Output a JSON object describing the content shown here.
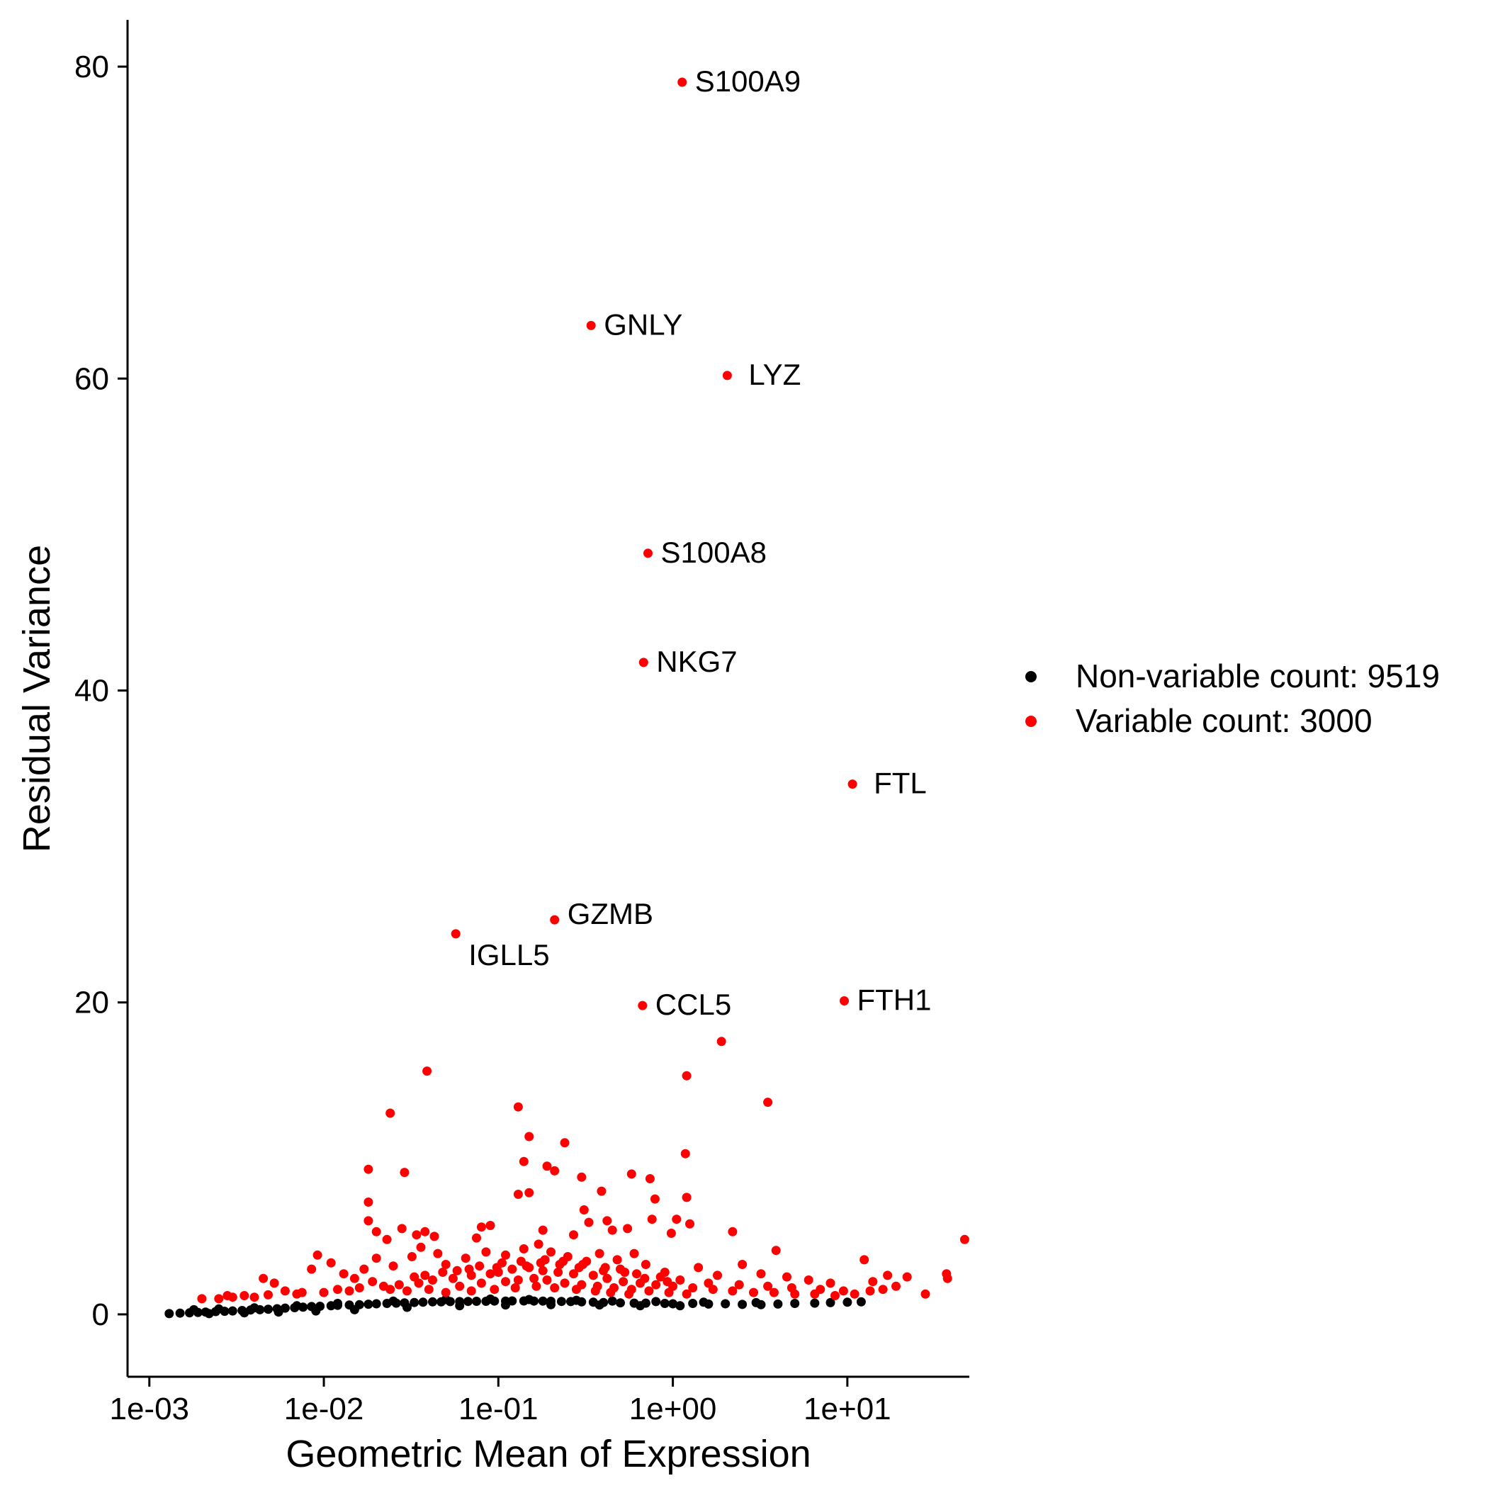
{
  "chart_data": {
    "type": "scatter",
    "title": "",
    "xlabel": "Geometric Mean of Expression",
    "ylabel": "Residual Variance",
    "x_scale": "log10",
    "xlim": [
      0.00075,
      50
    ],
    "ylim": [
      -4,
      83
    ],
    "x_ticks": [
      {
        "value": 0.001,
        "label": "1e-03"
      },
      {
        "value": 0.01,
        "label": "1e-02"
      },
      {
        "value": 0.1,
        "label": "1e-01"
      },
      {
        "value": 1,
        "label": "1e+00"
      },
      {
        "value": 10,
        "label": "1e+01"
      }
    ],
    "y_ticks": [
      {
        "value": 0,
        "label": "0"
      },
      {
        "value": 20,
        "label": "20"
      },
      {
        "value": 40,
        "label": "40"
      },
      {
        "value": 60,
        "label": "60"
      },
      {
        "value": 80,
        "label": "80"
      }
    ],
    "grid": false,
    "legend_position": "right",
    "series": [
      {
        "name": "Non-variable count: 9519",
        "color": "#000000",
        "points": [
          [
            0.0013,
            0.05
          ],
          [
            0.0015,
            0.08
          ],
          [
            0.0017,
            0.1
          ],
          [
            0.0019,
            0.12
          ],
          [
            0.0021,
            0.15
          ],
          [
            0.0024,
            0.18
          ],
          [
            0.0027,
            0.2
          ],
          [
            0.003,
            0.22
          ],
          [
            0.0034,
            0.25
          ],
          [
            0.0038,
            0.28
          ],
          [
            0.0043,
            0.3
          ],
          [
            0.0048,
            0.33
          ],
          [
            0.0054,
            0.36
          ],
          [
            0.006,
            0.4
          ],
          [
            0.0068,
            0.43
          ],
          [
            0.0076,
            0.46
          ],
          [
            0.0085,
            0.5
          ],
          [
            0.0095,
            0.52
          ],
          [
            0.011,
            0.55
          ],
          [
            0.012,
            0.58
          ],
          [
            0.014,
            0.6
          ],
          [
            0.016,
            0.62
          ],
          [
            0.018,
            0.65
          ],
          [
            0.02,
            0.68
          ],
          [
            0.023,
            0.7
          ],
          [
            0.026,
            0.72
          ],
          [
            0.029,
            0.74
          ],
          [
            0.033,
            0.76
          ],
          [
            0.037,
            0.78
          ],
          [
            0.042,
            0.8
          ],
          [
            0.047,
            0.8
          ],
          [
            0.053,
            0.82
          ],
          [
            0.06,
            0.82
          ],
          [
            0.067,
            0.83
          ],
          [
            0.075,
            0.84
          ],
          [
            0.085,
            0.84
          ],
          [
            0.095,
            0.85
          ],
          [
            0.11,
            0.85
          ],
          [
            0.12,
            0.86
          ],
          [
            0.14,
            0.86
          ],
          [
            0.16,
            0.85
          ],
          [
            0.18,
            0.85
          ],
          [
            0.2,
            0.84
          ],
          [
            0.23,
            0.83
          ],
          [
            0.26,
            0.82
          ],
          [
            0.3,
            0.8
          ],
          [
            0.35,
            0.78
          ],
          [
            0.4,
            0.76
          ],
          [
            0.5,
            0.74
          ],
          [
            0.6,
            0.72
          ],
          [
            0.7,
            0.72
          ],
          [
            0.9,
            0.7
          ],
          [
            1.0,
            0.68
          ],
          [
            1.3,
            0.7
          ],
          [
            1.6,
            0.66
          ],
          [
            2.0,
            0.68
          ],
          [
            2.5,
            0.64
          ],
          [
            3.2,
            0.62
          ],
          [
            4.0,
            0.66
          ],
          [
            5.0,
            0.7
          ],
          [
            6.5,
            0.72
          ],
          [
            8.0,
            0.75
          ],
          [
            10.0,
            0.78
          ],
          [
            12.0,
            0.8
          ],
          [
            0.0018,
            0.3
          ],
          [
            0.0025,
            0.35
          ],
          [
            0.004,
            0.42
          ],
          [
            0.007,
            0.55
          ],
          [
            0.012,
            0.7
          ],
          [
            0.025,
            0.85
          ],
          [
            0.05,
            0.95
          ],
          [
            0.09,
            0.98
          ],
          [
            0.15,
            0.95
          ],
          [
            0.28,
            0.9
          ],
          [
            0.45,
            0.85
          ],
          [
            0.8,
            0.82
          ],
          [
            1.5,
            0.78
          ],
          [
            3.0,
            0.75
          ],
          [
            0.0022,
            0.05
          ],
          [
            0.0035,
            0.1
          ],
          [
            0.0055,
            0.15
          ],
          [
            0.009,
            0.22
          ],
          [
            0.015,
            0.3
          ],
          [
            0.03,
            0.45
          ],
          [
            0.06,
            0.55
          ],
          [
            0.11,
            0.6
          ],
          [
            0.2,
            0.62
          ],
          [
            0.38,
            0.6
          ],
          [
            0.65,
            0.55
          ],
          [
            1.1,
            0.55
          ]
        ]
      },
      {
        "name": "Variable count: 3000",
        "color": "#ff0000",
        "points": [
          [
            1.13,
            79.0
          ],
          [
            0.34,
            63.4
          ],
          [
            2.05,
            60.2
          ],
          [
            0.72,
            48.8
          ],
          [
            0.68,
            41.8
          ],
          [
            10.7,
            34.0
          ],
          [
            0.21,
            25.3
          ],
          [
            0.057,
            24.4
          ],
          [
            0.67,
            19.8
          ],
          [
            9.6,
            20.1
          ],
          [
            1.9,
            17.5
          ],
          [
            0.039,
            15.6
          ],
          [
            1.2,
            15.3
          ],
          [
            3.5,
            13.6
          ],
          [
            0.13,
            13.3
          ],
          [
            0.024,
            12.9
          ],
          [
            0.15,
            11.4
          ],
          [
            0.24,
            11.0
          ],
          [
            1.18,
            10.3
          ],
          [
            0.018,
            9.3
          ],
          [
            0.029,
            9.1
          ],
          [
            0.14,
            9.8
          ],
          [
            0.19,
            9.5
          ],
          [
            0.21,
            9.2
          ],
          [
            0.3,
            8.8
          ],
          [
            0.58,
            9.0
          ],
          [
            0.74,
            8.7
          ],
          [
            0.13,
            7.7
          ],
          [
            0.15,
            7.8
          ],
          [
            0.39,
            7.9
          ],
          [
            0.018,
            7.2
          ],
          [
            0.79,
            7.4
          ],
          [
            1.2,
            7.5
          ],
          [
            0.31,
            6.7
          ],
          [
            0.018,
            6.0
          ],
          [
            0.08,
            5.6
          ],
          [
            0.09,
            5.7
          ],
          [
            0.33,
            5.9
          ],
          [
            0.42,
            6.0
          ],
          [
            0.76,
            6.1
          ],
          [
            1.05,
            6.1
          ],
          [
            1.25,
            5.8
          ],
          [
            2.2,
            5.3
          ],
          [
            0.028,
            5.5
          ],
          [
            0.034,
            5.1
          ],
          [
            0.038,
            5.3
          ],
          [
            0.043,
            5.0
          ],
          [
            0.02,
            5.3
          ],
          [
            0.023,
            4.8
          ],
          [
            0.075,
            4.9
          ],
          [
            0.18,
            5.4
          ],
          [
            0.27,
            5.1
          ],
          [
            0.45,
            5.4
          ],
          [
            0.55,
            5.5
          ],
          [
            0.98,
            5.2
          ],
          [
            47.0,
            4.8
          ],
          [
            3.9,
            4.1
          ],
          [
            12.5,
            3.5
          ],
          [
            0.0045,
            2.3
          ],
          [
            0.0052,
            2.0
          ],
          [
            0.0035,
            1.2
          ],
          [
            0.006,
            1.5
          ],
          [
            0.0085,
            2.9
          ],
          [
            0.0092,
            3.8
          ],
          [
            0.011,
            3.3
          ],
          [
            0.013,
            2.6
          ],
          [
            0.015,
            2.3
          ],
          [
            0.017,
            2.9
          ],
          [
            0.02,
            3.6
          ],
          [
            0.025,
            3.1
          ],
          [
            0.032,
            3.7
          ],
          [
            0.036,
            4.3
          ],
          [
            0.045,
            3.9
          ],
          [
            0.05,
            3.2
          ],
          [
            0.065,
            3.6
          ],
          [
            0.085,
            4.0
          ],
          [
            0.11,
            3.8
          ],
          [
            0.14,
            4.2
          ],
          [
            0.17,
            4.5
          ],
          [
            0.2,
            4.0
          ],
          [
            0.25,
            3.7
          ],
          [
            0.32,
            3.4
          ],
          [
            0.38,
            3.9
          ],
          [
            0.48,
            3.5
          ],
          [
            0.6,
            3.9
          ],
          [
            0.7,
            3.2
          ],
          [
            0.9,
            2.7
          ],
          [
            1.4,
            3.0
          ],
          [
            1.8,
            2.5
          ],
          [
            2.5,
            3.2
          ],
          [
            3.2,
            2.6
          ],
          [
            4.5,
            2.4
          ],
          [
            6.0,
            2.2
          ],
          [
            8.0,
            2.0
          ],
          [
            14.0,
            2.1
          ],
          [
            17.0,
            2.5
          ],
          [
            19.0,
            1.8
          ],
          [
            22.0,
            2.4
          ],
          [
            28.0,
            1.3
          ],
          [
            37.0,
            2.6
          ],
          [
            37.5,
            2.3
          ],
          [
            0.002,
            1.0
          ],
          [
            0.0025,
            1.0
          ],
          [
            0.003,
            1.1
          ],
          [
            0.004,
            1.1
          ],
          [
            0.007,
            1.3
          ],
          [
            0.01,
            1.4
          ],
          [
            0.012,
            1.6
          ],
          [
            0.016,
            1.7
          ],
          [
            0.022,
            1.8
          ],
          [
            0.027,
            1.9
          ],
          [
            0.035,
            2.0
          ],
          [
            0.042,
            2.2
          ],
          [
            0.055,
            2.3
          ],
          [
            0.07,
            2.5
          ],
          [
            0.09,
            2.6
          ],
          [
            0.1,
            2.7
          ],
          [
            0.12,
            2.9
          ],
          [
            0.15,
            3.0
          ],
          [
            0.18,
            2.8
          ],
          [
            0.22,
            2.7
          ],
          [
            0.27,
            2.6
          ],
          [
            0.35,
            2.5
          ],
          [
            0.42,
            2.3
          ],
          [
            0.52,
            2.1
          ],
          [
            0.65,
            2.0
          ],
          [
            0.8,
            1.9
          ],
          [
            1.0,
            1.8
          ],
          [
            1.3,
            1.7
          ],
          [
            1.7,
            1.6
          ],
          [
            2.2,
            1.5
          ],
          [
            2.9,
            1.4
          ],
          [
            3.8,
            1.4
          ],
          [
            5.0,
            1.3
          ],
          [
            6.5,
            1.3
          ],
          [
            8.5,
            1.2
          ],
          [
            11.0,
            1.3
          ],
          [
            13.5,
            1.5
          ],
          [
            16.0,
            1.6
          ],
          [
            0.03,
            1.5
          ],
          [
            0.04,
            1.6
          ],
          [
            0.06,
            1.8
          ],
          [
            0.08,
            2.0
          ],
          [
            0.11,
            2.1
          ],
          [
            0.13,
            2.2
          ],
          [
            0.16,
            2.3
          ],
          [
            0.19,
            2.2
          ],
          [
            0.24,
            2.0
          ],
          [
            0.3,
            1.9
          ],
          [
            0.37,
            1.8
          ],
          [
            0.46,
            1.7
          ],
          [
            0.58,
            1.6
          ],
          [
            0.73,
            1.5
          ],
          [
            0.95,
            1.4
          ],
          [
            1.2,
            1.3
          ],
          [
            0.05,
            1.4
          ],
          [
            0.07,
            1.5
          ],
          [
            0.095,
            1.6
          ],
          [
            0.125,
            1.7
          ],
          [
            0.165,
            1.8
          ],
          [
            0.21,
            1.7
          ],
          [
            0.28,
            1.6
          ],
          [
            0.36,
            1.5
          ],
          [
            0.44,
            1.4
          ],
          [
            0.56,
            1.3
          ],
          [
            0.0028,
            1.2
          ],
          [
            0.0048,
            1.25
          ],
          [
            0.0075,
            1.4
          ],
          [
            0.014,
            1.5
          ],
          [
            0.024,
            1.6
          ],
          [
            0.038,
            2.5
          ],
          [
            0.058,
            2.8
          ],
          [
            0.078,
            3.1
          ],
          [
            0.105,
            3.3
          ],
          [
            0.135,
            3.4
          ],
          [
            0.175,
            3.3
          ],
          [
            0.225,
            3.2
          ],
          [
            0.29,
            3.0
          ],
          [
            0.4,
            2.8
          ],
          [
            0.5,
            2.9
          ],
          [
            0.62,
            2.6
          ],
          [
            0.85,
            2.4
          ],
          [
            1.1,
            2.2
          ],
          [
            1.6,
            2.0
          ],
          [
            2.4,
            1.9
          ],
          [
            3.5,
            1.8
          ],
          [
            4.8,
            1.7
          ],
          [
            7.0,
            1.6
          ],
          [
            9.5,
            1.5
          ],
          [
            0.019,
            2.1
          ],
          [
            0.033,
            2.4
          ],
          [
            0.048,
            2.7
          ],
          [
            0.068,
            2.9
          ],
          [
            0.098,
            3.0
          ],
          [
            0.145,
            3.1
          ],
          [
            0.185,
            3.5
          ],
          [
            0.235,
            3.4
          ],
          [
            0.305,
            3.2
          ],
          [
            0.41,
            3.0
          ],
          [
            0.53,
            2.7
          ],
          [
            0.69,
            2.3
          ],
          [
            0.93,
            2.1
          ]
        ]
      }
    ],
    "annotations": [
      {
        "text": "S100A9",
        "x": 1.13,
        "y": 79.0
      },
      {
        "text": "GNLY",
        "x": 0.34,
        "y": 63.4
      },
      {
        "text": "LYZ",
        "x": 2.05,
        "y": 60.2
      },
      {
        "text": "S100A8",
        "x": 0.72,
        "y": 48.8
      },
      {
        "text": "NKG7",
        "x": 0.68,
        "y": 41.8
      },
      {
        "text": "FTL",
        "x": 10.7,
        "y": 34.0
      },
      {
        "text": "GZMB",
        "x": 0.21,
        "y": 25.3
      },
      {
        "text": "IGLL5",
        "x": 0.057,
        "y": 24.4
      },
      {
        "text": "CCL5",
        "x": 0.67,
        "y": 19.8
      },
      {
        "text": "FTH1",
        "x": 9.6,
        "y": 20.1
      }
    ]
  }
}
